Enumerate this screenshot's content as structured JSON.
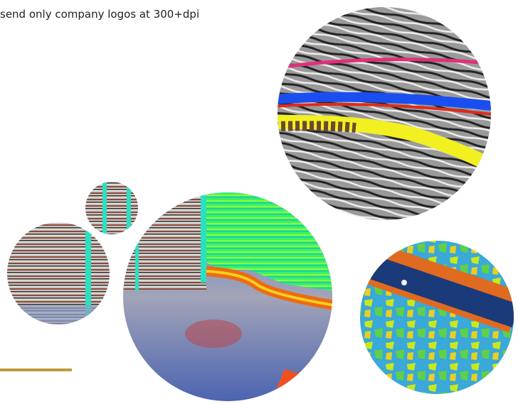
{
  "caption": "send only company logos at 300+dpi"
}
